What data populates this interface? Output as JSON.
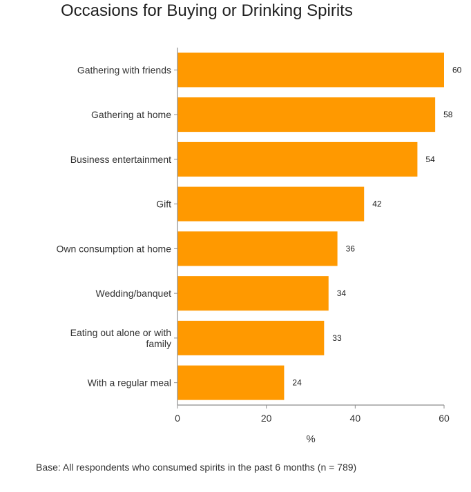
{
  "chart_data": {
    "type": "bar",
    "orientation": "horizontal",
    "title": "Occasions for Buying or Drinking Spirits",
    "categories": [
      "Gathering with friends",
      "Gathering at home",
      "Business entertainment",
      "Gift",
      "Own consumption at home",
      "Wedding/banquet",
      "Eating out alone or with family",
      "With a regular meal"
    ],
    "values": [
      60,
      58,
      54,
      42,
      36,
      34,
      33,
      24
    ],
    "xlabel": "%",
    "ylabel": "",
    "xlim": [
      0,
      60
    ],
    "xticks": [
      0,
      20,
      40,
      60
    ],
    "grid": false,
    "data_labels": true,
    "bar_color": "#ff9900",
    "axis_color": "#8c8c8c"
  },
  "footnote": "Base: All respondents who consumed spirits in the past 6 months (n = 789)"
}
